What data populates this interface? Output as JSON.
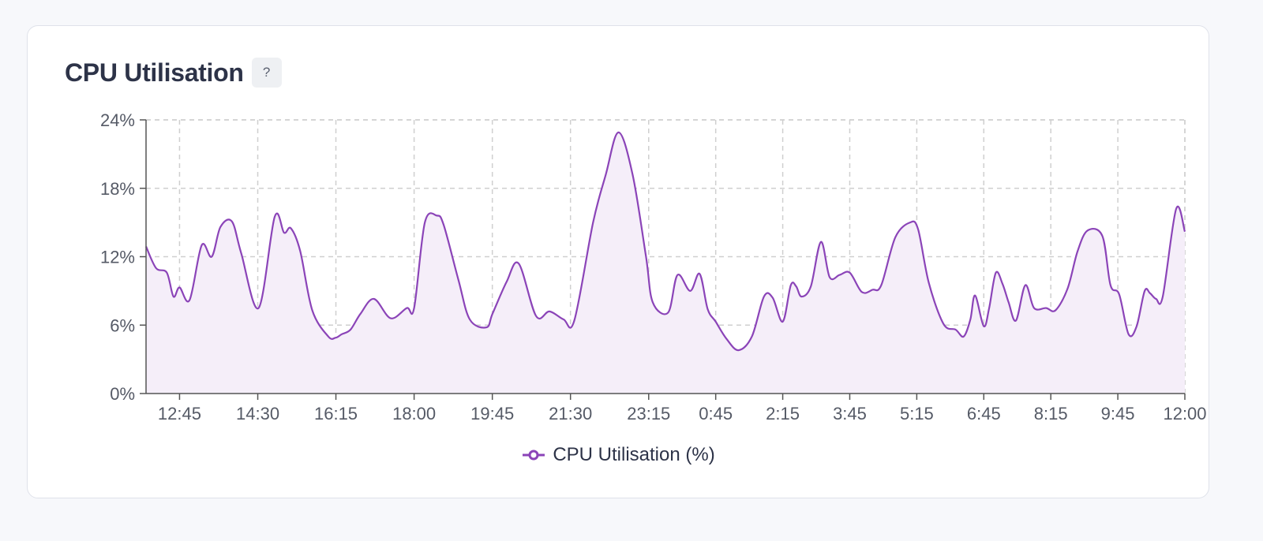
{
  "card": {
    "title": "CPU Utilisation",
    "help_label": "?"
  },
  "colors": {
    "line": "#8b44b8",
    "fill": "#f5eef9",
    "axis": "#555555",
    "grid": "#cfcfcf",
    "tick_text": "#555a66"
  },
  "chart_data": {
    "type": "area",
    "title": "CPU Utilisation",
    "xlabel": "",
    "ylabel": "",
    "ylim": [
      0,
      24
    ],
    "yticks": [
      0,
      6,
      12,
      18,
      24
    ],
    "ytick_labels": [
      "0%",
      "6%",
      "12%",
      "18%",
      "24%"
    ],
    "xticks": [
      "12:45",
      "14:30",
      "16:15",
      "18:00",
      "19:45",
      "21:30",
      "23:15",
      "0:45",
      "2:15",
      "3:45",
      "5:15",
      "6:45",
      "8:15",
      "9:45",
      "12:00"
    ],
    "xtick_positions": [
      0.5,
      1.667,
      2.833,
      4.0,
      5.167,
      6.333,
      7.5,
      8.5,
      9.5,
      10.5,
      11.5,
      12.5,
      13.5,
      14.5,
      15.5
    ],
    "x_end": 15.5,
    "grid": true,
    "legend": "bottom-center",
    "series": [
      {
        "name": "CPU Utilisation (%)",
        "x": [
          0.0,
          0.15,
          0.31,
          0.41,
          0.5,
          0.65,
          0.83,
          0.98,
          1.11,
          1.28,
          1.42,
          1.68,
          1.92,
          2.06,
          2.16,
          2.3,
          2.48,
          2.72,
          2.83,
          2.92,
          3.05,
          3.2,
          3.4,
          3.65,
          3.89,
          4.0,
          4.16,
          4.34,
          4.44,
          4.66,
          4.83,
          5.08,
          5.17,
          5.38,
          5.56,
          5.82,
          6.02,
          6.23,
          6.39,
          6.67,
          6.86,
          7.05,
          7.26,
          7.46,
          7.56,
          7.79,
          7.93,
          8.12,
          8.26,
          8.38,
          8.5,
          8.66,
          8.84,
          9.04,
          9.22,
          9.35,
          9.5,
          9.62,
          9.7,
          9.78,
          9.92,
          10.07,
          10.2,
          10.35,
          10.5,
          10.68,
          10.84,
          10.97,
          11.18,
          11.4,
          11.52,
          11.68,
          11.9,
          12.08,
          12.2,
          12.3,
          12.37,
          12.5,
          12.58,
          12.68,
          12.78,
          12.87,
          12.98,
          13.12,
          13.25,
          13.43,
          13.57,
          13.75,
          13.9,
          14.05,
          14.27,
          14.39,
          14.52,
          14.66,
          14.78,
          14.9,
          14.98,
          15.07,
          15.17,
          15.37,
          15.5
        ],
        "values": [
          12.9,
          11.0,
          10.6,
          8.5,
          9.3,
          8.2,
          13.0,
          12.0,
          14.6,
          15.1,
          12.3,
          7.5,
          15.5,
          14.1,
          14.5,
          12.5,
          7.3,
          5.0,
          4.9,
          5.2,
          5.6,
          7.0,
          8.3,
          6.6,
          7.5,
          7.5,
          15.0,
          15.6,
          14.8,
          10.0,
          6.5,
          5.8,
          7.0,
          9.8,
          11.4,
          6.8,
          7.2,
          6.5,
          6.4,
          15.0,
          19.2,
          22.9,
          19.2,
          12.0,
          8.0,
          7.1,
          10.4,
          9.0,
          10.5,
          7.4,
          6.3,
          4.8,
          3.8,
          5.0,
          8.5,
          8.4,
          6.3,
          9.5,
          9.4,
          8.5,
          9.4,
          13.3,
          10.2,
          10.4,
          10.6,
          8.9,
          9.1,
          9.5,
          13.7,
          15.0,
          14.4,
          9.7,
          6.1,
          5.6,
          5.0,
          6.5,
          8.6,
          5.9,
          7.5,
          10.6,
          9.6,
          8.0,
          6.4,
          9.5,
          7.5,
          7.5,
          7.3,
          9.2,
          12.5,
          14.3,
          13.8,
          9.5,
          8.7,
          5.2,
          5.9,
          9.0,
          8.8,
          8.3,
          8.5,
          16.2,
          14.2
        ]
      }
    ]
  },
  "legend": {
    "label": "CPU Utilisation (%)"
  }
}
